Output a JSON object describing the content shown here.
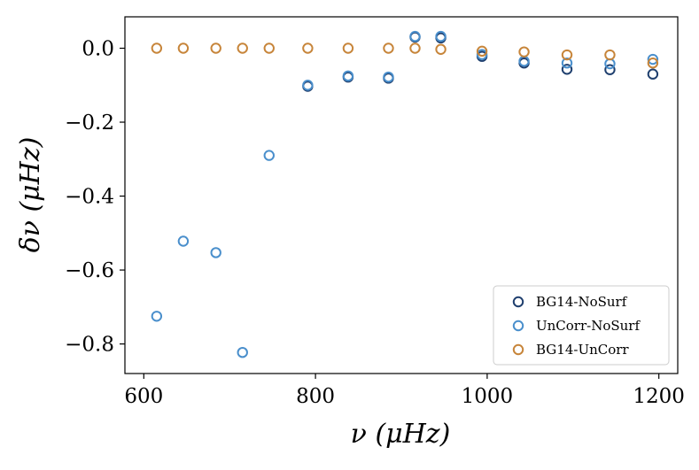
{
  "chart_data": {
    "type": "scatter",
    "xlabel": "ν  (μHz)",
    "ylabel": "δν  (μHz)",
    "xlim": [
      578,
      1222
    ],
    "ylim": [
      -0.88,
      0.085
    ],
    "x_ticks": [
      600,
      800,
      1000,
      1200
    ],
    "y_ticks": [
      0.0,
      -0.2,
      -0.4,
      -0.6,
      -0.8
    ],
    "x_tick_labels": [
      "600",
      "800",
      "1000",
      "1200"
    ],
    "y_tick_labels": [
      "0.0",
      "−0.2",
      "−0.4",
      "−0.6",
      "−0.8"
    ],
    "grid": false,
    "legend_position": "lower-right",
    "marker": "open-circle",
    "series": [
      {
        "name": "BG14-NoSurf",
        "color": "#1f3f6e",
        "points": [
          [
            791,
            -0.103
          ],
          [
            838,
            -0.078
          ],
          [
            885,
            -0.081
          ],
          [
            916,
            0.03
          ],
          [
            946,
            0.028
          ],
          [
            994,
            -0.022
          ],
          [
            1043,
            -0.04
          ],
          [
            1093,
            -0.057
          ],
          [
            1143,
            -0.058
          ],
          [
            1193,
            -0.07
          ]
        ]
      },
      {
        "name": "UnCorr-NoSurf",
        "color": "#4a8fcc",
        "points": [
          [
            615,
            -0.725
          ],
          [
            646,
            -0.522
          ],
          [
            684,
            -0.553
          ],
          [
            715,
            -0.823
          ],
          [
            746,
            -0.29
          ],
          [
            791,
            -0.1
          ],
          [
            838,
            -0.075
          ],
          [
            885,
            -0.078
          ],
          [
            916,
            0.032
          ],
          [
            946,
            0.032
          ],
          [
            994,
            -0.017
          ],
          [
            1043,
            -0.035
          ],
          [
            1093,
            -0.04
          ],
          [
            1143,
            -0.042
          ],
          [
            1193,
            -0.03
          ]
        ]
      },
      {
        "name": "BG14-UnCorr",
        "color": "#c7853a",
        "points": [
          [
            615,
            0.0
          ],
          [
            646,
            0.0
          ],
          [
            684,
            0.0
          ],
          [
            715,
            0.0
          ],
          [
            746,
            0.0
          ],
          [
            791,
            0.0
          ],
          [
            838,
            0.0
          ],
          [
            885,
            0.0
          ],
          [
            916,
            0.0
          ],
          [
            946,
            -0.003
          ],
          [
            994,
            -0.008
          ],
          [
            1043,
            -0.01
          ],
          [
            1093,
            -0.018
          ],
          [
            1143,
            -0.018
          ],
          [
            1193,
            -0.04
          ]
        ]
      }
    ]
  }
}
